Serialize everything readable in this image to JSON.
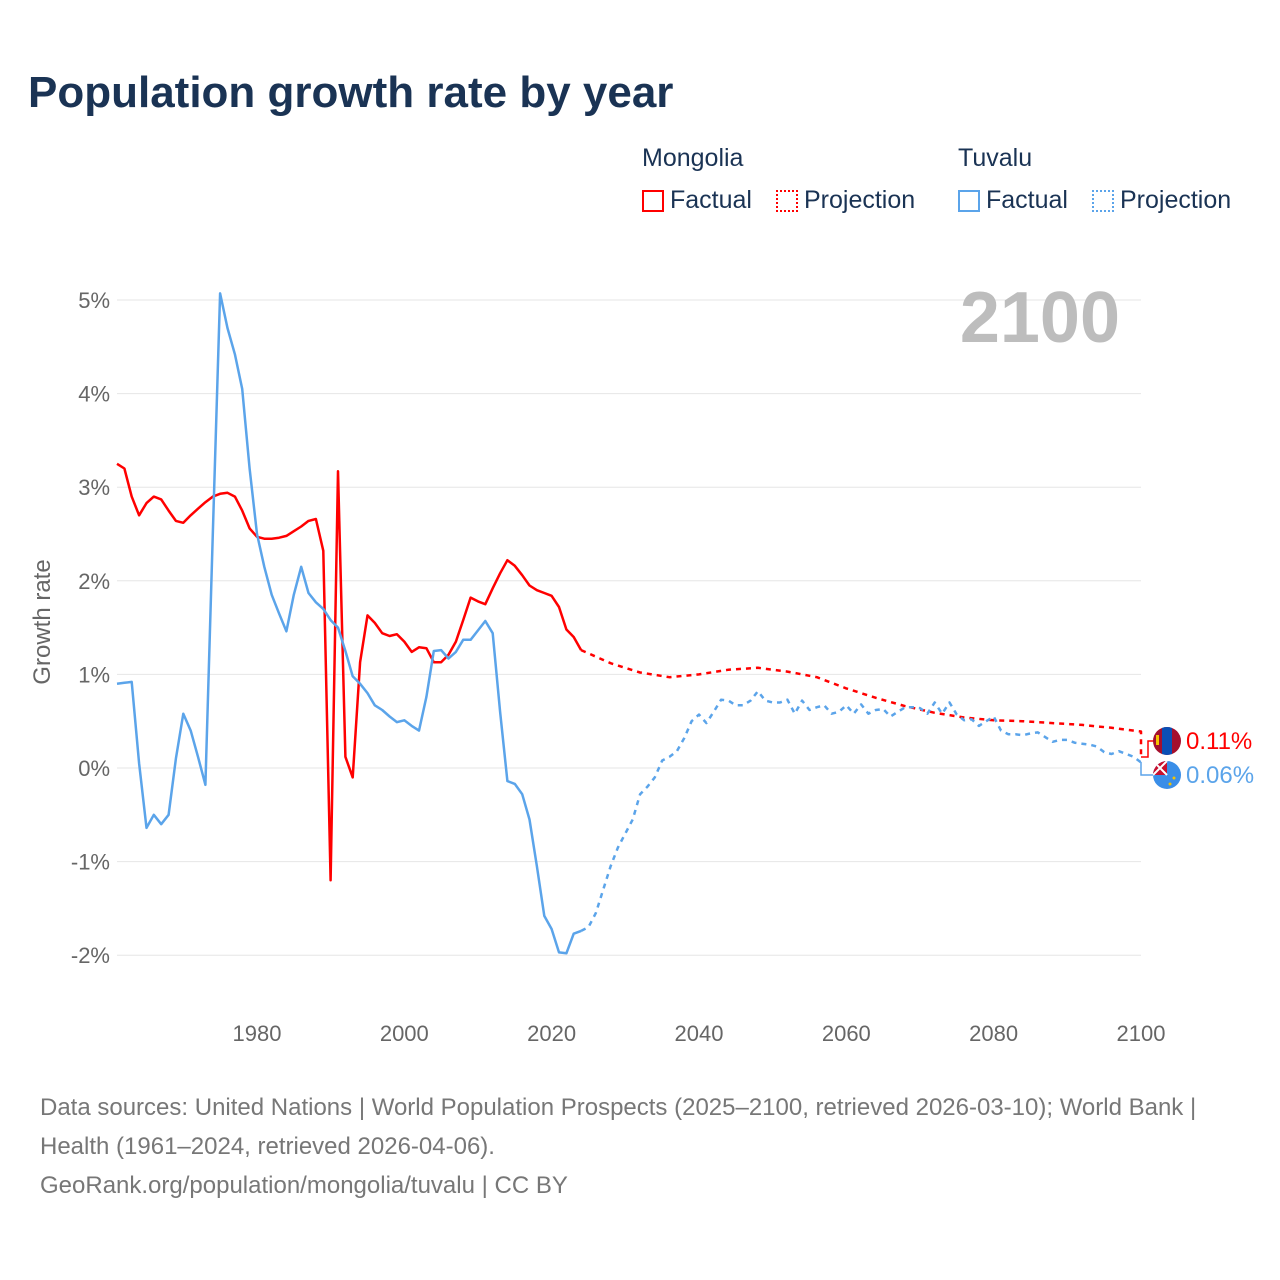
{
  "title": "Population growth rate by year",
  "legend": {
    "groups": [
      {
        "name": "Mongolia",
        "factual": "Factual",
        "projection": "Projection",
        "color": "#ff0000"
      },
      {
        "name": "Tuvalu",
        "factual": "Factual",
        "projection": "Projection",
        "color": "#5ba4ea"
      }
    ]
  },
  "year_label": "2100",
  "end_labels": {
    "mongolia": "0.11%",
    "tuvalu": "0.06%"
  },
  "footer": {
    "line1": "Data sources: United Nations | World Population Prospects (2025–2100, retrieved 2026-03-10); World Bank | Health (1961–2024, retrieved 2026-04-06).",
    "line2": "GeoRank.org/population/mongolia/tuvalu | CC BY"
  },
  "chart_data": {
    "type": "line",
    "title": "Population growth rate by year",
    "ylabel": "Growth rate",
    "xlim": [
      1961,
      2100
    ],
    "ylim": [
      -2.5,
      5.3
    ],
    "xticks": [
      1980,
      2000,
      2020,
      2040,
      2060,
      2080,
      2100
    ],
    "xtick_labels": [
      "1980",
      "2000",
      "2020",
      "2040",
      "2060",
      "2080",
      "2100"
    ],
    "yticks": [
      -2,
      -1,
      0,
      1,
      2,
      3,
      4,
      5
    ],
    "ytick_labels": [
      "-2%",
      "-1%",
      "0%",
      "1%",
      "2%",
      "3%",
      "4%",
      "5%"
    ],
    "series": [
      {
        "name": "Mongolia",
        "kind": "factual",
        "start": 1961,
        "color": "#ff0000",
        "values": [
          3.25,
          3.2,
          2.9,
          2.7,
          2.83,
          2.9,
          2.87,
          2.75,
          2.64,
          2.62,
          2.7,
          2.77,
          2.84,
          2.9,
          2.93,
          2.94,
          2.9,
          2.75,
          2.56,
          2.47,
          2.45,
          2.45,
          2.46,
          2.48,
          2.53,
          2.58,
          2.64,
          2.66,
          2.32,
          -1.2,
          3.17,
          0.12,
          -0.1,
          1.13,
          1.63,
          1.55,
          1.44,
          1.41,
          1.43,
          1.35,
          1.24,
          1.29,
          1.28,
          1.13,
          1.13,
          1.21,
          1.35,
          1.58,
          1.82,
          1.78,
          1.75,
          1.92,
          2.08,
          2.22,
          2.16,
          2.06,
          1.95,
          1.9,
          1.87,
          1.84,
          1.72,
          1.48,
          1.4,
          1.26
        ]
      },
      {
        "name": "Mongolia",
        "kind": "projection",
        "start": 2024,
        "step": 4,
        "color": "#ff0000",
        "values": [
          1.26,
          1.12,
          1.02,
          0.97,
          1.0,
          1.05,
          1.07,
          1.03,
          0.97,
          0.85,
          0.75,
          0.66,
          0.59,
          0.54,
          0.51,
          0.5,
          0.48,
          0.46,
          0.43,
          0.39,
          0.11
        ]
      },
      {
        "name": "Tuvalu",
        "kind": "factual",
        "start": 1961,
        "color": "#5ba4ea",
        "values": [
          0.9,
          0.91,
          0.92,
          0.05,
          -0.64,
          -0.5,
          -0.6,
          -0.5,
          0.1,
          0.58,
          0.4,
          0.12,
          -0.18,
          2.5,
          5.07,
          4.7,
          4.42,
          4.05,
          3.2,
          2.5,
          2.15,
          1.85,
          1.65,
          1.46,
          1.85,
          2.15,
          1.87,
          1.77,
          1.7,
          1.58,
          1.5,
          1.25,
          0.98,
          0.9,
          0.8,
          0.67,
          0.62,
          0.55,
          0.49,
          0.51,
          0.45,
          0.4,
          0.76,
          1.25,
          1.26,
          1.17,
          1.24,
          1.37,
          1.37,
          1.47,
          1.57,
          1.44,
          0.6,
          -0.14,
          -0.17,
          -0.28,
          -0.55,
          -1.05,
          -1.58,
          -1.72,
          -1.97,
          -1.98,
          -1.77,
          -1.74
        ]
      },
      {
        "name": "Tuvalu",
        "kind": "projection",
        "start": 2024,
        "color": "#5ba4ea",
        "values": [
          -1.74,
          -1.7,
          -1.55,
          -1.3,
          -1.05,
          -0.85,
          -0.7,
          -0.55,
          -0.28,
          -0.2,
          -0.1,
          0.08,
          0.12,
          0.18,
          0.32,
          0.5,
          0.57,
          0.48,
          0.6,
          0.73,
          0.72,
          0.67,
          0.67,
          0.72,
          0.82,
          0.72,
          0.7,
          0.7,
          0.73,
          0.58,
          0.72,
          0.62,
          0.65,
          0.67,
          0.58,
          0.6,
          0.67,
          0.58,
          0.68,
          0.58,
          0.62,
          0.63,
          0.55,
          0.6,
          0.65,
          0.65,
          0.64,
          0.58,
          0.7,
          0.58,
          0.7,
          0.57,
          0.51,
          0.52,
          0.45,
          0.5,
          0.55,
          0.4,
          0.36,
          0.36,
          0.35,
          0.37,
          0.38,
          0.33,
          0.28,
          0.3,
          0.3,
          0.27,
          0.26,
          0.25,
          0.23,
          0.17,
          0.15,
          0.18,
          0.15,
          0.12,
          0.06
        ]
      }
    ]
  }
}
